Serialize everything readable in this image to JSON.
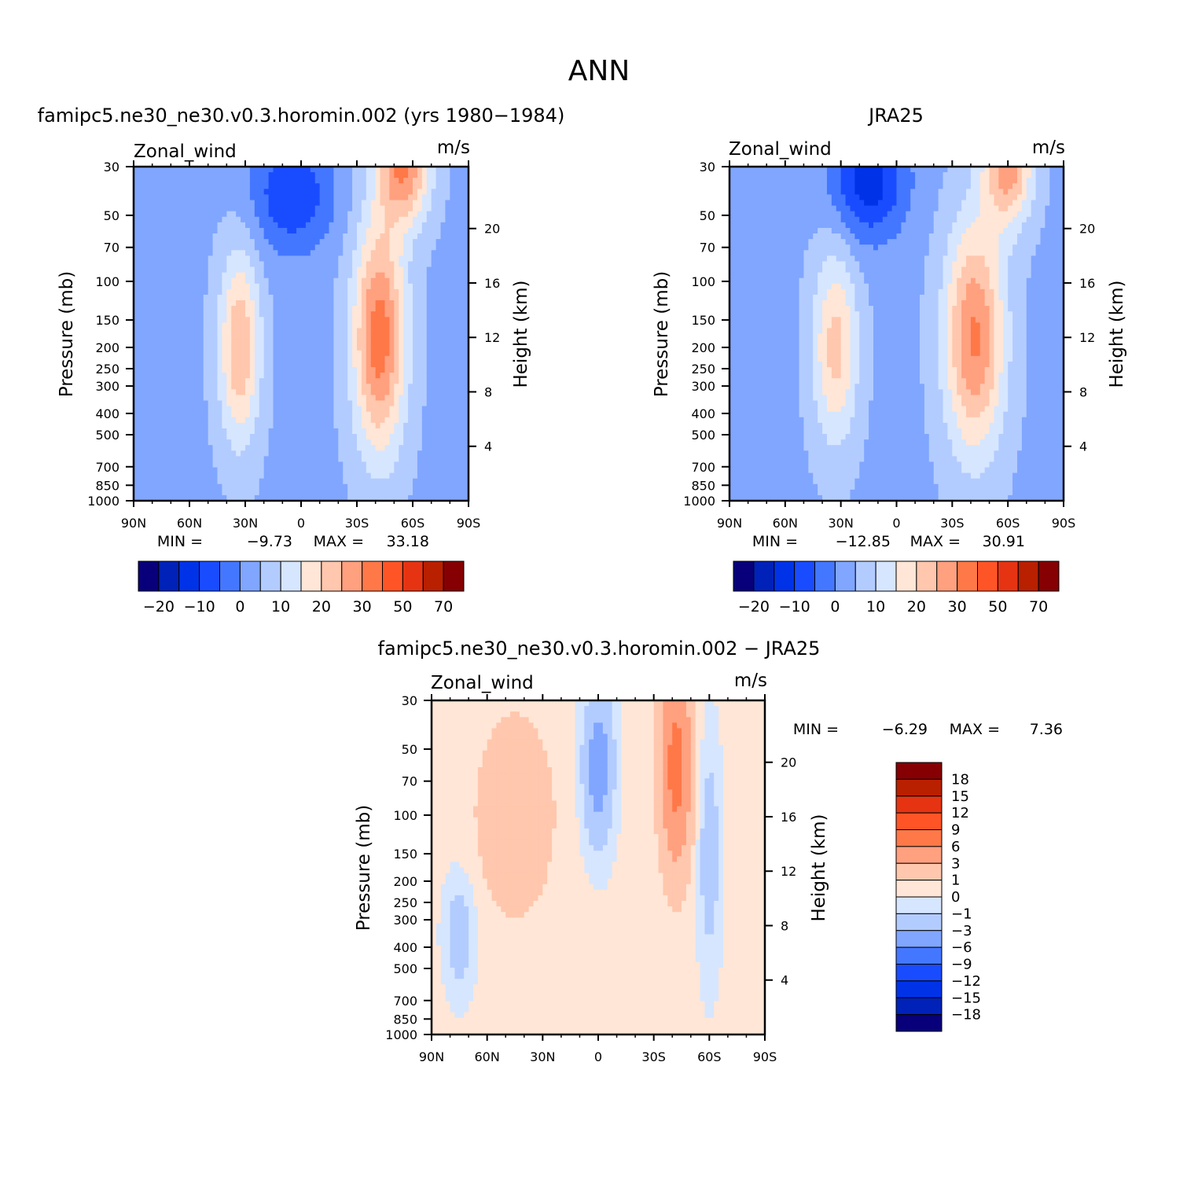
{
  "main_title": "ANN",
  "colors": {
    "full": [
      "#08007a",
      "#0022b8",
      "#0033e8",
      "#1a4cff",
      "#4477ff",
      "#80a6ff",
      "#b3ccff",
      "#d6e6ff",
      "#ffe6d6",
      "#ffc7ad",
      "#ffa07f",
      "#ff7848",
      "#ff5526",
      "#e63413",
      "#b82000",
      "#860003"
    ],
    "diff": [
      "#08007a",
      "#0022b8",
      "#0033e8",
      "#1a4cff",
      "#4477ff",
      "#80a6ff",
      "#b3ccff",
      "#d6e6ff",
      "#ffe6d6",
      "#ffc7ad",
      "#ffa07f",
      "#ff7848",
      "#ff5526",
      "#e63413",
      "#b82000",
      "#860003"
    ]
  },
  "panels": [
    {
      "title": "famipc5.ne30_ne30.v0.3.horomin.002 (yrs 1980−1984)",
      "var_label": "Zonal_wind",
      "units": "m/s",
      "ylabel": "Pressure (mb)",
      "ylabel2": "Height (km)",
      "min_label": "MIN =",
      "min_value": "−9.73",
      "max_label": "MAX =",
      "max_value": "33.18"
    },
    {
      "title": "JRA25",
      "var_label": "Zonal_wind",
      "units": "m/s",
      "ylabel": "Pressure (mb)",
      "ylabel2": "Height (km)",
      "min_label": "MIN =",
      "min_value": "−12.85",
      "max_label": "MAX =",
      "max_value": "30.91"
    },
    {
      "title": "famipc5.ne30_ne30.v0.3.horomin.002 − JRA25",
      "var_label": "Zonal_wind",
      "units": "m/s",
      "ylabel": "Pressure (mb)",
      "ylabel2": "Height (km)",
      "min_label": "MIN =",
      "min_value": "−6.29",
      "max_label": "MAX =",
      "max_value": "7.36"
    }
  ],
  "full_colorbar_labels": [
    "−20",
    "−10",
    "0",
    "10",
    "20",
    "30",
    "50",
    "70"
  ],
  "diff_colorbar_labels": [
    "18",
    "15",
    "12",
    "9",
    "6",
    "3",
    "1",
    "0",
    "−1",
    "−3",
    "−6",
    "−9",
    "−12",
    "−15",
    "−18"
  ],
  "chart_data": [
    {
      "type": "heatmap",
      "title": "famipc5.ne30_ne30.v0.3.horomin.002 (yrs 1980−1984)",
      "variable": "Zonal_wind",
      "units": "m/s",
      "x_ticks": [
        "90N",
        "60N",
        "30N",
        "0",
        "30S",
        "60S",
        "90S"
      ],
      "y_ticks": [
        "30",
        "50",
        "70",
        "100",
        "150",
        "200",
        "250",
        "300",
        "400",
        "500",
        "700",
        "850",
        "1000"
      ],
      "y_right_ticks": [
        "20",
        "16",
        "12",
        "8",
        "4"
      ],
      "ylim": [
        1000,
        30
      ],
      "xlim": [
        90,
        -90
      ],
      "levels": [
        -20,
        -15,
        -10,
        -5,
        0,
        5,
        10,
        15,
        20,
        25,
        30,
        40,
        50,
        60,
        70
      ],
      "min": -9.73,
      "max": 33.18,
      "features": [
        {
          "lat": 33,
          "p": 200,
          "value": 25.0,
          "width_lat": 11,
          "height": 1.0
        },
        {
          "lat": -42,
          "p": 180,
          "value": 33.18,
          "width_lat": 14,
          "height": 1.2
        },
        {
          "lat": -55,
          "p": 30,
          "value": 30.0,
          "width_lat": 14,
          "height": 0.6
        },
        {
          "lat": 5,
          "p": 40,
          "value": -9.73,
          "width_lat": 22,
          "height": 0.6
        }
      ]
    },
    {
      "type": "heatmap",
      "title": "JRA25",
      "variable": "Zonal_wind",
      "units": "m/s",
      "x_ticks": [
        "90N",
        "60N",
        "30N",
        "0",
        "30S",
        "60S",
        "90S"
      ],
      "y_ticks": [
        "30",
        "50",
        "70",
        "100",
        "150",
        "200",
        "250",
        "300",
        "400",
        "500",
        "700",
        "850",
        "1000"
      ],
      "y_right_ticks": [
        "20",
        "16",
        "12",
        "8",
        "4"
      ],
      "ylim": [
        1000,
        30
      ],
      "xlim": [
        90,
        -90
      ],
      "levels": [
        -20,
        -15,
        -10,
        -5,
        0,
        5,
        10,
        15,
        20,
        25,
        30,
        40,
        50,
        60,
        70
      ],
      "min": -12.85,
      "max": 30.91,
      "features": [
        {
          "lat": 33,
          "p": 200,
          "value": 22.0,
          "width_lat": 12,
          "height": 1.0
        },
        {
          "lat": -42,
          "p": 180,
          "value": 30.91,
          "width_lat": 16,
          "height": 1.2
        },
        {
          "lat": -60,
          "p": 30,
          "value": 28.0,
          "width_lat": 13,
          "height": 0.6
        },
        {
          "lat": 15,
          "p": 35,
          "value": -12.85,
          "width_lat": 20,
          "height": 0.6
        }
      ]
    },
    {
      "type": "heatmap",
      "title": "famipc5.ne30_ne30.v0.3.horomin.002 − JRA25",
      "variable": "Zonal_wind",
      "units": "m/s",
      "x_ticks": [
        "90N",
        "60N",
        "30N",
        "0",
        "30S",
        "60S",
        "90S"
      ],
      "y_ticks": [
        "30",
        "50",
        "70",
        "100",
        "150",
        "200",
        "250",
        "300",
        "400",
        "500",
        "700",
        "850",
        "1000"
      ],
      "y_right_ticks": [
        "20",
        "16",
        "12",
        "8",
        "4"
      ],
      "ylim": [
        1000,
        30
      ],
      "xlim": [
        90,
        -90
      ],
      "levels": [
        -18,
        -15,
        -12,
        -9,
        -6,
        -3,
        -1,
        0,
        1,
        3,
        6,
        9,
        12,
        15,
        18
      ],
      "min": -6.29,
      "max": 7.36,
      "features": [
        {
          "lat": 45,
          "p": 100,
          "value": 2.5,
          "width_lat": 20,
          "height": 1.0
        },
        {
          "lat": 0,
          "p": 60,
          "value": -4.5,
          "width_lat": 8,
          "height": 0.8
        },
        {
          "lat": -42,
          "p": 60,
          "value": 7.36,
          "width_lat": 8,
          "height": 1.0
        },
        {
          "lat": -60,
          "p": 150,
          "value": -2.0,
          "width_lat": 6,
          "height": 1.2
        },
        {
          "lat": 75,
          "p": 350,
          "value": -2.0,
          "width_lat": 8,
          "height": 0.6
        }
      ]
    }
  ]
}
